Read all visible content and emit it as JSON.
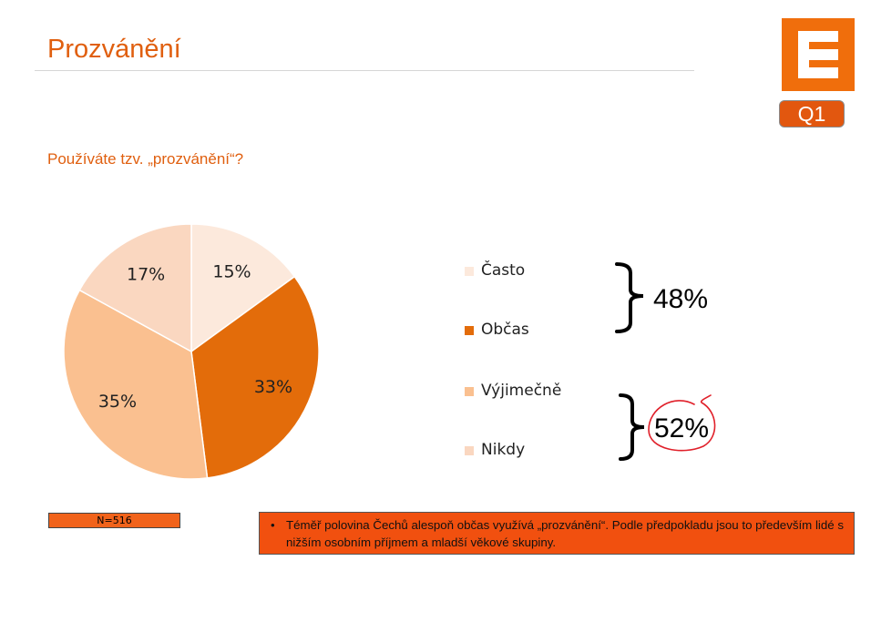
{
  "slide": {
    "title": "Prozvánění",
    "badge": "Q1",
    "question": "Používáte tzv. „prozvánění“?",
    "sample": "N=516",
    "note": "Téměř polovina Čechů alespoň občas využívá „prozvánění“. Podle předpokladu jsou to především lidé s nižším osobním příjmem a mladší věkové skupiny.",
    "note_bullet": "•",
    "groups": [
      {
        "label": "48%"
      },
      {
        "label": "52%"
      }
    ]
  },
  "colors": {
    "accent": "#e05f0f",
    "logo": "#f06e0c",
    "note_box": "#f1500f",
    "annotation_circle": "#e0202a"
  },
  "icons": {
    "logo": "cez-logo-icon"
  },
  "chart_data": {
    "type": "pie",
    "categories": [
      "Často",
      "Občas",
      "Výjimečně",
      "Nikdy"
    ],
    "values": [
      15,
      33,
      35,
      17
    ],
    "labels": [
      "15%",
      "33%",
      "35%",
      "17%"
    ],
    "colors": [
      "#fce9dc",
      "#e36c0a",
      "#fac090",
      "#fad7c0"
    ],
    "legend_position": "right",
    "title": ""
  }
}
